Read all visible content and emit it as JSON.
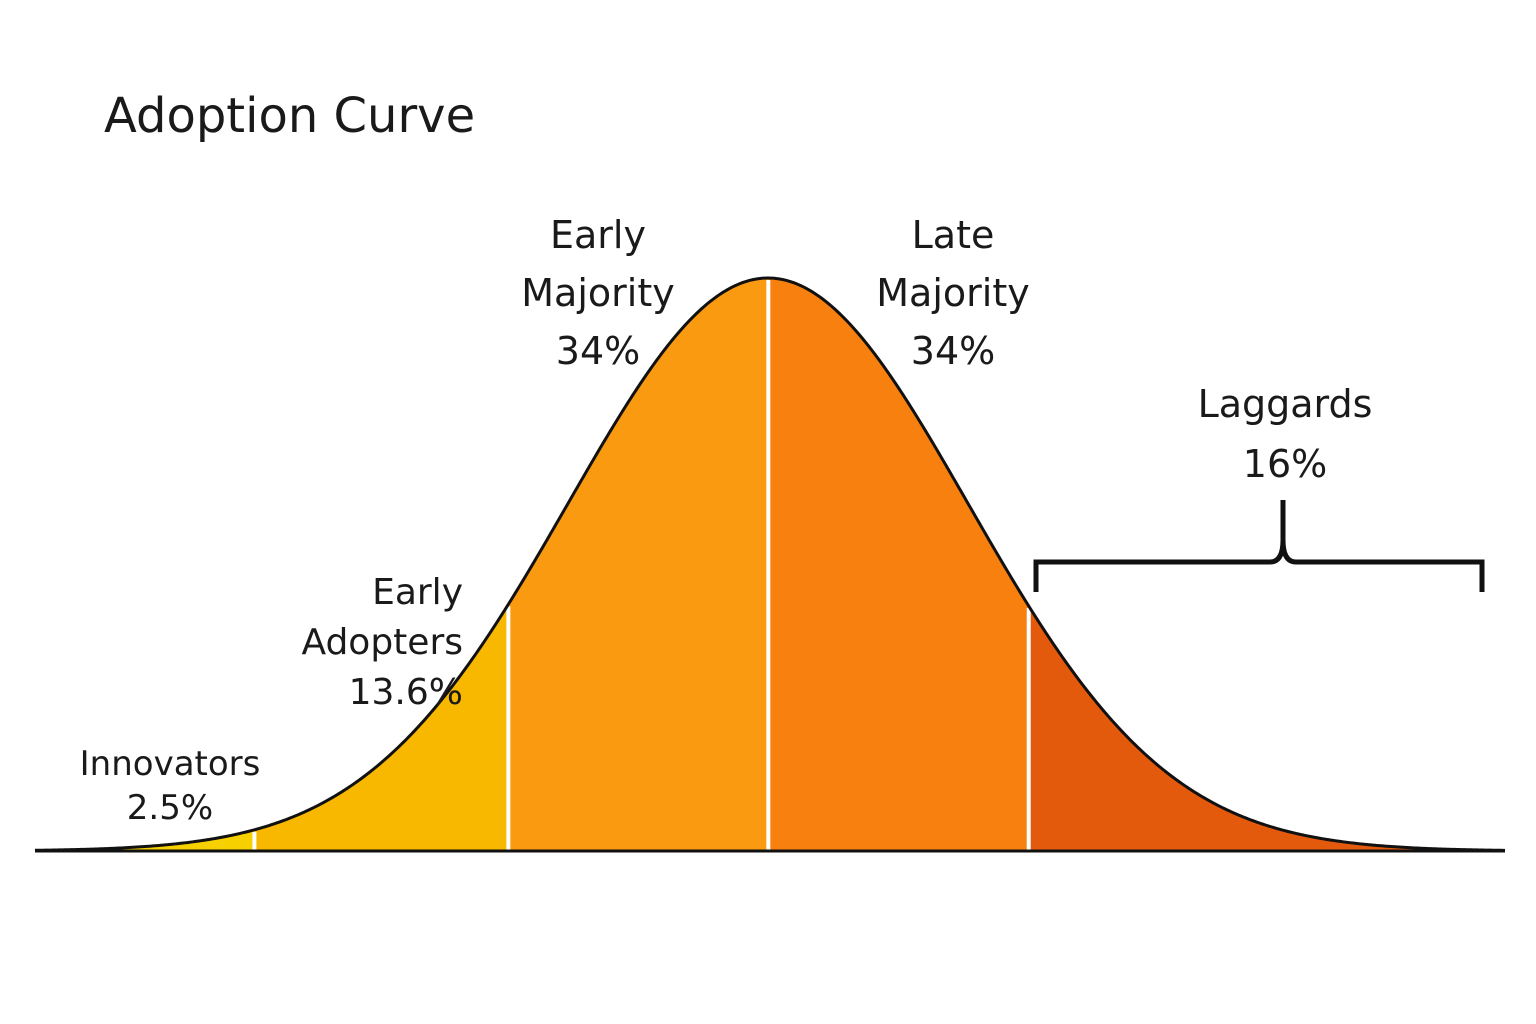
{
  "chart_data": {
    "type": "bell",
    "title": "Adoption Curve",
    "categories": [
      "Innovators",
      "Early Adopters",
      "Early Majority",
      "Late Majority",
      "Laggards"
    ],
    "values": [
      2.5,
      13.6,
      34,
      34,
      16
    ],
    "value_labels": [
      "2.5%",
      "13.6%",
      "34%",
      "34%",
      "16%"
    ],
    "colors": [
      "#f7d000",
      "#f9b800",
      "#f99a10",
      "#f7800e",
      "#e45a0c"
    ]
  }
}
